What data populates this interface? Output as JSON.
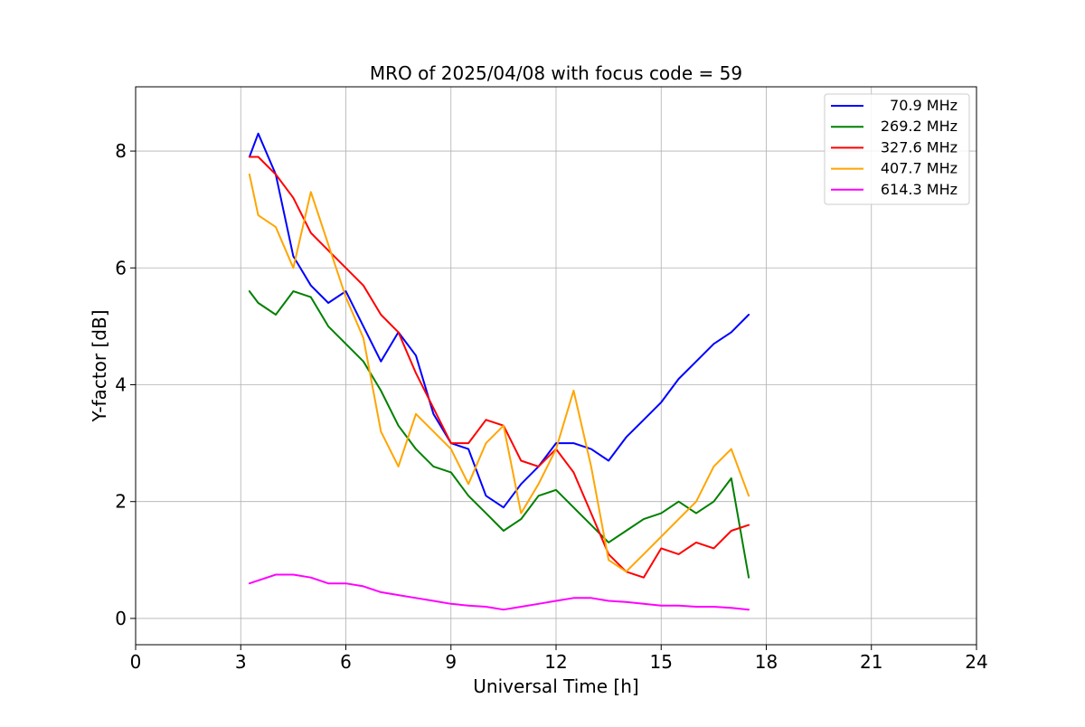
{
  "chart_data": {
    "type": "line",
    "title": "MRO of 2025/04/08 with focus code = 59",
    "xlabel": "Universal Time [h]",
    "ylabel": "Y-factor [dB]",
    "xlim": [
      0,
      24
    ],
    "ylim": [
      -0.45,
      9.1
    ],
    "x_ticks": [
      0,
      3,
      6,
      9,
      12,
      15,
      18,
      21,
      24
    ],
    "y_ticks": [
      0,
      2,
      4,
      6,
      8
    ],
    "x_tick_labels": [
      "0",
      "3",
      "6",
      "9",
      "12",
      "15",
      "18",
      "21",
      "24"
    ],
    "y_tick_labels": [
      "0",
      "2",
      "4",
      "6",
      "8"
    ],
    "grid": true,
    "legend_position": "top-right",
    "series": [
      {
        "name": "70.9 MHz",
        "color": "#0000ff",
        "x": [
          3.25,
          3.5,
          4.0,
          4.5,
          5.0,
          5.5,
          6.0,
          6.5,
          7.0,
          7.5,
          8.0,
          8.5,
          9.0,
          9.5,
          10.0,
          10.5,
          11.0,
          11.5,
          12.0,
          12.5,
          13.0,
          13.5,
          14.0,
          14.5,
          15.0,
          15.5,
          16.0,
          16.5,
          17.0,
          17.5
        ],
        "y": [
          7.9,
          8.3,
          7.6,
          6.2,
          5.7,
          5.4,
          5.6,
          5.0,
          4.4,
          4.9,
          4.5,
          3.5,
          3.0,
          2.9,
          2.1,
          1.9,
          2.3,
          2.6,
          3.0,
          3.0,
          2.9,
          2.7,
          3.1,
          3.4,
          3.7,
          4.1,
          4.4,
          4.7,
          4.9,
          5.2
        ]
      },
      {
        "name": "269.2 MHz",
        "color": "#008000",
        "x": [
          3.25,
          3.5,
          4.0,
          4.5,
          5.0,
          5.5,
          6.0,
          6.5,
          7.0,
          7.5,
          8.0,
          8.5,
          9.0,
          9.5,
          10.0,
          10.5,
          11.0,
          11.5,
          12.0,
          12.5,
          13.0,
          13.5,
          14.0,
          14.5,
          15.0,
          15.5,
          16.0,
          16.5,
          17.0,
          17.5
        ],
        "y": [
          5.6,
          5.4,
          5.2,
          5.6,
          5.5,
          5.0,
          4.7,
          4.4,
          3.9,
          3.3,
          2.9,
          2.6,
          2.5,
          2.1,
          1.8,
          1.5,
          1.7,
          2.1,
          2.2,
          1.9,
          1.6,
          1.3,
          1.5,
          1.7,
          1.8,
          2.0,
          1.8,
          2.0,
          2.4,
          0.7
        ]
      },
      {
        "name": "327.6 MHz",
        "color": "#ff0000",
        "x": [
          3.25,
          3.5,
          4.0,
          4.5,
          5.0,
          5.5,
          6.0,
          6.5,
          7.0,
          7.5,
          8.0,
          8.5,
          9.0,
          9.5,
          10.0,
          10.5,
          11.0,
          11.5,
          12.0,
          12.5,
          13.0,
          13.5,
          14.0,
          14.5,
          15.0,
          15.5,
          16.0,
          16.5,
          17.0,
          17.5
        ],
        "y": [
          7.9,
          7.9,
          7.6,
          7.2,
          6.6,
          6.3,
          6.0,
          5.7,
          5.2,
          4.9,
          4.2,
          3.6,
          3.0,
          3.0,
          3.4,
          3.3,
          2.7,
          2.6,
          2.9,
          2.5,
          1.8,
          1.1,
          0.8,
          0.7,
          1.2,
          1.1,
          1.3,
          1.2,
          1.5,
          1.6
        ]
      },
      {
        "name": "407.7 MHz",
        "color": "#ffa500",
        "x": [
          3.25,
          3.5,
          4.0,
          4.5,
          5.0,
          5.5,
          6.0,
          6.5,
          7.0,
          7.5,
          8.0,
          8.5,
          9.0,
          9.5,
          10.0,
          10.5,
          11.0,
          11.5,
          12.0,
          12.5,
          13.0,
          13.5,
          14.0,
          14.5,
          15.0,
          15.5,
          16.0,
          16.5,
          17.0,
          17.5
        ],
        "y": [
          7.6,
          6.9,
          6.7,
          6.0,
          7.3,
          6.4,
          5.5,
          4.8,
          3.2,
          2.6,
          3.5,
          3.2,
          2.9,
          2.3,
          3.0,
          3.3,
          1.8,
          2.3,
          2.9,
          3.9,
          2.6,
          1.0,
          0.8,
          1.1,
          1.4,
          1.7,
          2.0,
          2.6,
          2.9,
          2.1
        ]
      },
      {
        "name": "614.3 MHz",
        "color": "#ff00ff",
        "x": [
          3.25,
          3.5,
          4.0,
          4.5,
          5.0,
          5.5,
          6.0,
          6.5,
          7.0,
          7.5,
          8.0,
          8.5,
          9.0,
          9.5,
          10.0,
          10.5,
          11.0,
          11.5,
          12.0,
          12.5,
          13.0,
          13.5,
          14.0,
          14.5,
          15.0,
          15.5,
          16.0,
          16.5,
          17.0,
          17.5
        ],
        "y": [
          0.6,
          0.65,
          0.75,
          0.75,
          0.7,
          0.6,
          0.6,
          0.55,
          0.45,
          0.4,
          0.35,
          0.3,
          0.25,
          0.22,
          0.2,
          0.15,
          0.2,
          0.25,
          0.3,
          0.35,
          0.35,
          0.3,
          0.28,
          0.25,
          0.22,
          0.22,
          0.2,
          0.2,
          0.18,
          0.15
        ]
      }
    ]
  }
}
